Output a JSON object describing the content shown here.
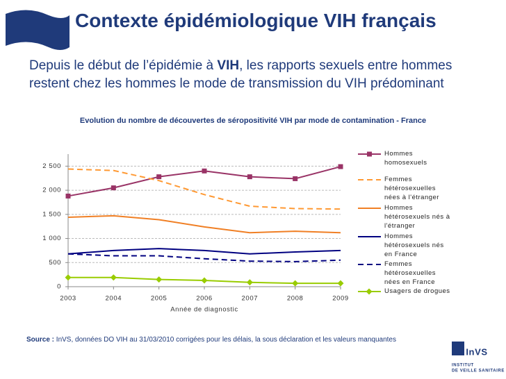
{
  "header": {
    "title": "Contexte épidémiologique VIH français",
    "subtitle": [
      "Depuis le début de l’épidémie à ",
      "VIH",
      ", les rapports sexuels entre hommes restent chez les hommes le mode de transmission du VIH prédominant"
    ]
  },
  "chart_data": {
    "type": "line",
    "title": "Evolution du nombre de découvertes de séropositivité VIH par mode de contamination - France",
    "x_label": "Année de diagnostic",
    "x": [
      2003,
      2004,
      2005,
      2006,
      2007,
      2008,
      2009
    ],
    "xlim": [
      2003,
      2009
    ],
    "xticks": [
      2003,
      2004,
      2005,
      2006,
      2007,
      2008,
      2009
    ],
    "ylim": [
      0,
      2750
    ],
    "yticks": [
      0,
      {
        "value": 500,
        "label": " 500"
      },
      {
        "value": 1000,
        "label": "1 000"
      },
      {
        "value": 1500,
        "label": "1 500"
      },
      {
        "value": 2000,
        "label": "2 000"
      },
      {
        "value": 2500,
        "label": "2 500"
      }
    ],
    "grid": true,
    "legend": "right",
    "series": [
      {
        "name": "Hommes homosexuels",
        "color": "#993366",
        "marker": "square",
        "dash": false,
        "values": [
          1880,
          2050,
          2280,
          2400,
          2280,
          2240,
          2490
        ]
      },
      {
        "name": "Femmes hétérosexuelles nées à l'étranger",
        "color": "#ff9933",
        "marker": "none",
        "dash": true,
        "values": [
          2440,
          2410,
          2200,
          1910,
          1670,
          1620,
          1610
        ]
      },
      {
        "name": "Hommes hétérosexuels nés à l'étranger",
        "color": "#f07f24",
        "marker": "none",
        "dash": false,
        "values": [
          1440,
          1470,
          1390,
          1240,
          1120,
          1150,
          1120
        ]
      },
      {
        "name": "Hommes hétérosexuels nés en France",
        "color": "#000080",
        "marker": "none",
        "dash": false,
        "values": [
          680,
          750,
          790,
          750,
          680,
          720,
          750
        ]
      },
      {
        "name": "Femmes hétérosexuelles nées en France",
        "color": "#000080",
        "marker": "none",
        "dash": true,
        "values": [
          680,
          640,
          640,
          580,
          530,
          520,
          550
        ]
      },
      {
        "name": "Usagers de drogues",
        "color": "#99cc00",
        "marker": "diamond",
        "dash": false,
        "values": [
          190,
          190,
          150,
          130,
          90,
          70,
          70
        ]
      }
    ]
  },
  "source": {
    "label": "Source :",
    "text": " InVS, données DO VIH au 31/03/2010 corrigées pour les délais, la sous déclaration et les valeurs manquantes"
  },
  "logo": {
    "name": "InVS",
    "line1": "INSTITUT",
    "line2": "DE VEILLE SANITAIRE"
  }
}
